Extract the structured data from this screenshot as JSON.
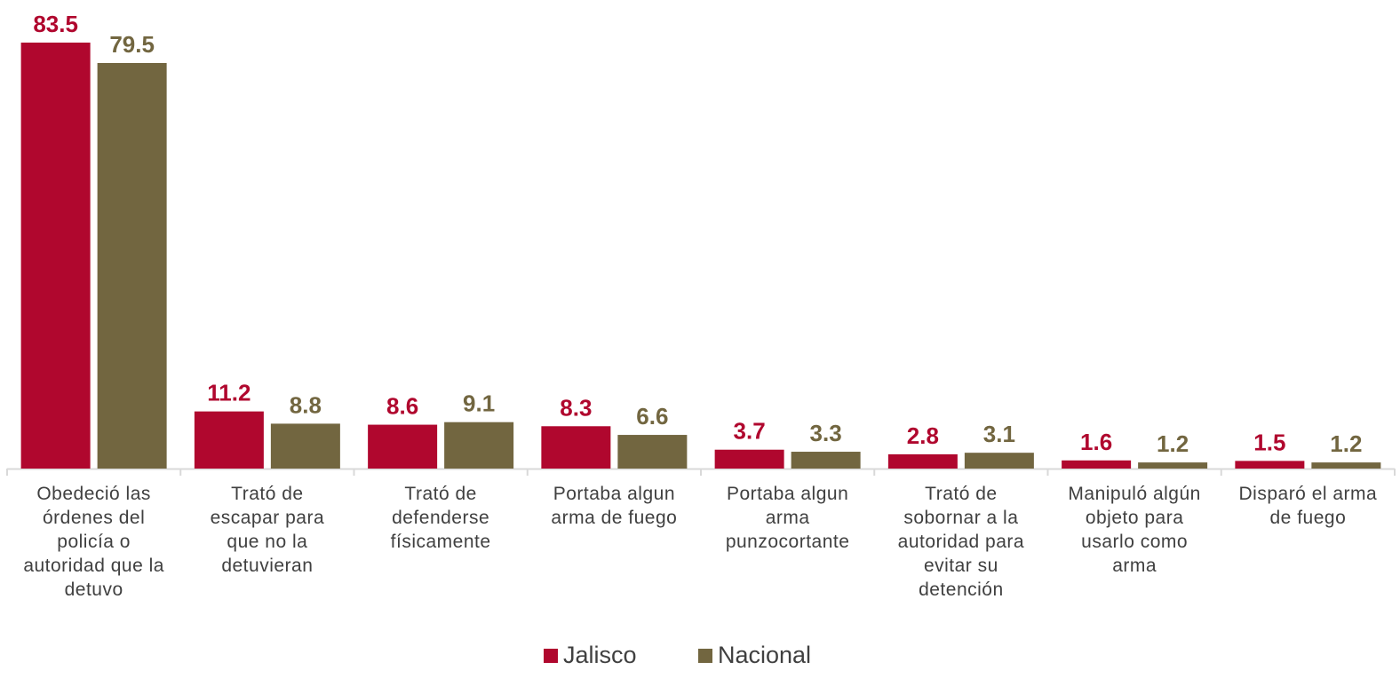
{
  "chart_data": {
    "type": "bar",
    "categories": [
      [
        "Obedeció las",
        "órdenes del",
        "policía o",
        "autoridad que la",
        "detuvo"
      ],
      [
        "Trató de",
        "escapar para",
        "que no la",
        "detuvieran"
      ],
      [
        "Trató de",
        "defenderse",
        "físicamente"
      ],
      [
        "Portaba algun",
        "arma de fuego"
      ],
      [
        "Portaba algun",
        "arma",
        "punzocortante"
      ],
      [
        "Trató de",
        "sobornar a la",
        "autoridad para",
        "evitar su",
        "detención"
      ],
      [
        "Manipuló algún",
        "objeto para",
        "usarlo como",
        "arma"
      ],
      [
        "Disparó el arma",
        "de fuego"
      ]
    ],
    "series": [
      {
        "name": "Jalisco",
        "color": "#b0072e",
        "values": [
          83.5,
          11.2,
          8.6,
          8.3,
          3.7,
          2.8,
          1.6,
          1.5
        ],
        "labels": [
          "83.5",
          "11.2",
          "8.6",
          "8.3",
          "3.7",
          "2.8",
          "1.6",
          "1.5"
        ]
      },
      {
        "name": "Nacional",
        "color": "#726640",
        "values": [
          79.5,
          8.8,
          9.1,
          6.6,
          3.3,
          3.1,
          1.2,
          1.2
        ],
        "labels": [
          "79.5",
          "8.8",
          "9.1",
          "6.6",
          "3.3",
          "3.1",
          "1.2",
          "1.2"
        ]
      }
    ],
    "title": "",
    "xlabel": "",
    "ylabel": "",
    "ylim": [
      0,
      83.5
    ],
    "grid": false,
    "legend_position": "bottom-center"
  }
}
